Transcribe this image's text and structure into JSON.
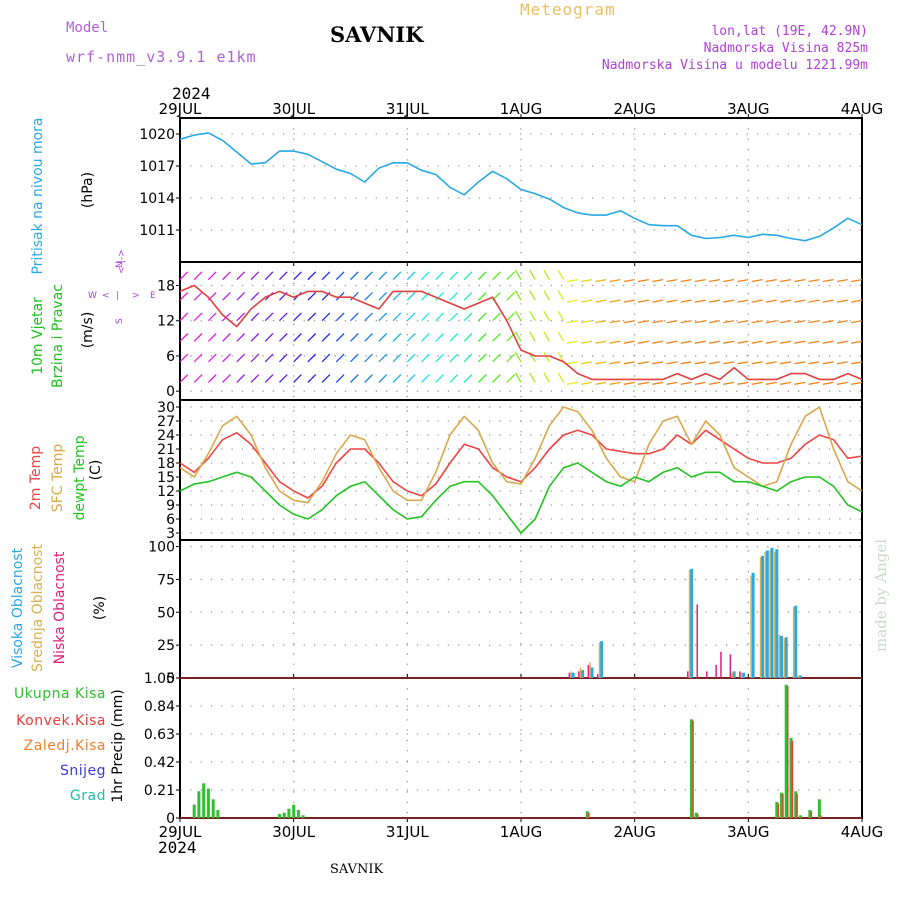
{
  "header": {
    "model_label": "Model",
    "model_name": "wrf-nmm_v3.9.1 e1km",
    "title": "SAVNIK",
    "meteogram_label": "Meteogram",
    "lonlat": "lon,lat (19E, 42.9N)",
    "altitude": "Nadmorska Visina 825m",
    "model_altitude": "Nadmorska Visina u modelu 1221.99m",
    "year": "2024"
  },
  "footer": {
    "station": "SAVNIK",
    "credit": "made by Angel"
  },
  "colors": {
    "pressure": "#29a8e6",
    "temp2m": "#ee4444",
    "sfctemp": "#d8a84a",
    "dewpt": "#22c422",
    "high_cloud": "#29a8e6",
    "mid_cloud": "#d8b050",
    "low_cloud": "#e0207a",
    "total_precip": "#2fbf2f",
    "conv_precip": "#ee3b3b",
    "frozen_precip": "#f08030",
    "snow": "#3a3aee",
    "graupel": "#20c0b0",
    "wind_label": "#20c020",
    "wind_axis_label": "#b040e0"
  },
  "chart_data": [
    {
      "type": "line",
      "panel": "pressure",
      "ylabel": "(hPa)",
      "side_label": "Pritisak na nivou mora",
      "yticks": [
        1011,
        1014,
        1017,
        1020
      ],
      "ylim": [
        1008,
        1021.5
      ],
      "xlim": [
        0,
        144
      ],
      "xtick_labels": [
        "29JUL",
        "30JUL",
        "31JUL",
        "1AUG",
        "2AUG",
        "3AUG",
        "4AUG"
      ],
      "grid": true,
      "series": [
        {
          "x": [
            0,
            3,
            6,
            9,
            12,
            15,
            18,
            21,
            24,
            27,
            30,
            33,
            36,
            39,
            42,
            45,
            48,
            51,
            54,
            57,
            60,
            63,
            66,
            69,
            72,
            75,
            78,
            81,
            84,
            87,
            90,
            93,
            96,
            99,
            102,
            105,
            108,
            111,
            114,
            117,
            120,
            123,
            126,
            129,
            132,
            135,
            138,
            141,
            144
          ],
          "values": [
            1019.5,
            1019.9,
            1020.1,
            1019.4,
            1018.3,
            1017.2,
            1017.3,
            1018.4,
            1018.4,
            1018.1,
            1017.4,
            1016.7,
            1016.3,
            1015.5,
            1016.8,
            1017.3,
            1017.3,
            1016.6,
            1016.2,
            1015.0,
            1014.3,
            1015.5,
            1016.5,
            1015.8,
            1014.8,
            1014.4,
            1013.9,
            1013.1,
            1012.6,
            1012.4,
            1012.4,
            1012.8,
            1012.1,
            1011.5,
            1011.4,
            1011.4,
            1010.5,
            1010.2,
            1010.3,
            1010.5,
            1010.3,
            1010.6,
            1010.5,
            1010.2,
            1010.0,
            1010.4,
            1011.2,
            1012.1,
            1011.5
          ]
        }
      ]
    },
    {
      "type": "line",
      "panel": "wind",
      "ylabel": "(m/s)",
      "side_labels": [
        "10m Vjetar",
        "Brzina i Pravac"
      ],
      "compass": {
        "north": "N",
        "south": "S",
        "east": "E",
        "west": "W"
      },
      "yticks": [
        0,
        6,
        12,
        18
      ],
      "ylim": [
        -1.5,
        22
      ],
      "xlim": [
        0,
        144
      ],
      "grid": true,
      "series": [
        {
          "name": "speed",
          "x": [
            0,
            3,
            6,
            9,
            12,
            15,
            18,
            21,
            24,
            27,
            30,
            33,
            36,
            39,
            42,
            45,
            48,
            51,
            54,
            57,
            60,
            63,
            66,
            69,
            72,
            75,
            78,
            81,
            84,
            87,
            90,
            93,
            96,
            99,
            102,
            105,
            108,
            111,
            114,
            117,
            120,
            123,
            126,
            129,
            132,
            135,
            138,
            141,
            144
          ],
          "values": [
            17,
            18,
            16,
            13,
            11,
            14,
            16,
            17,
            16,
            17,
            17,
            16,
            16,
            15,
            14,
            17,
            17,
            17,
            16,
            15,
            14,
            15,
            16,
            12,
            7,
            6,
            6,
            5,
            3,
            2,
            2,
            2,
            2,
            2,
            2,
            3,
            2,
            3,
            2,
            4,
            2,
            2,
            2,
            3,
            3,
            2,
            2,
            3,
            2
          ]
        }
      ]
    },
    {
      "type": "line",
      "panel": "temperature",
      "ylabel": "(C)",
      "side_labels": [
        "2m Temp",
        "SFC Temp",
        "dewpt Temp"
      ],
      "yticks": [
        3,
        6,
        9,
        12,
        15,
        18,
        21,
        24,
        27,
        30
      ],
      "ylim": [
        1.5,
        31.5
      ],
      "xlim": [
        0,
        144
      ],
      "grid": true,
      "series": [
        {
          "name": "2m Temp",
          "x": [
            0,
            3,
            6,
            9,
            12,
            15,
            18,
            21,
            24,
            27,
            30,
            33,
            36,
            39,
            42,
            45,
            48,
            51,
            54,
            57,
            60,
            63,
            66,
            69,
            72,
            75,
            78,
            81,
            84,
            87,
            90,
            93,
            96,
            99,
            102,
            105,
            108,
            111,
            114,
            117,
            120,
            123,
            126,
            129,
            132,
            135,
            138,
            141,
            144
          ],
          "values": [
            18,
            16,
            19,
            23,
            24.5,
            22,
            18,
            14,
            12,
            10.5,
            13,
            18,
            21,
            21,
            18,
            14,
            12,
            11,
            13.5,
            18,
            22,
            21,
            17,
            15,
            14,
            17,
            21,
            24,
            25,
            24,
            21,
            20.5,
            20,
            20,
            21,
            24,
            22,
            25,
            23,
            21,
            19,
            18,
            18,
            19,
            22,
            24,
            23,
            19,
            19.5
          ]
        },
        {
          "name": "SFC Temp",
          "x": [
            0,
            3,
            6,
            9,
            12,
            15,
            18,
            21,
            24,
            27,
            30,
            33,
            36,
            39,
            42,
            45,
            48,
            51,
            54,
            57,
            60,
            63,
            66,
            69,
            72,
            75,
            78,
            81,
            84,
            87,
            90,
            93,
            96,
            99,
            102,
            105,
            108,
            111,
            114,
            117,
            120,
            123,
            126,
            129,
            132,
            135,
            138,
            141,
            144
          ],
          "values": [
            17,
            15,
            20,
            26,
            28,
            24,
            17,
            12,
            10,
            9.5,
            14,
            20,
            24,
            23,
            17,
            12,
            10,
            10,
            16,
            24,
            28,
            25,
            18,
            14,
            13.5,
            19,
            26,
            30,
            29,
            25,
            19,
            15,
            14,
            22,
            27,
            28,
            22,
            27,
            24,
            17,
            15,
            13,
            14,
            22,
            28,
            30,
            21,
            14,
            12
          ]
        },
        {
          "name": "dewpt Temp",
          "x": [
            0,
            3,
            6,
            9,
            12,
            15,
            18,
            21,
            24,
            27,
            30,
            33,
            36,
            39,
            42,
            45,
            48,
            51,
            54,
            57,
            60,
            63,
            66,
            69,
            72,
            75,
            78,
            81,
            84,
            87,
            90,
            93,
            96,
            99,
            102,
            105,
            108,
            111,
            114,
            117,
            120,
            123,
            126,
            129,
            132,
            135,
            138,
            141,
            144
          ],
          "values": [
            12,
            13.5,
            14,
            15,
            16,
            15,
            12,
            9,
            7,
            6,
            8,
            11,
            13,
            14,
            11,
            8,
            6,
            6.5,
            10,
            13,
            14,
            14,
            11,
            7,
            3,
            6,
            13,
            17,
            18,
            16,
            14,
            13,
            15,
            14,
            16,
            17,
            15,
            16,
            16,
            14,
            14,
            13,
            12,
            14,
            15,
            15,
            13,
            9,
            7.5
          ]
        }
      ]
    },
    {
      "type": "bar",
      "panel": "cloud",
      "ylabel": "(%)",
      "side_labels": [
        "Visoka Oblacnost",
        "Srednja Oblacnost",
        "Niska Oblacnost"
      ],
      "yticks": [
        0,
        25,
        50,
        75,
        100
      ],
      "ylim": [
        0,
        105
      ],
      "xlim": [
        0,
        144
      ],
      "grid": true,
      "series": [
        {
          "name": "Visoka Oblacnost",
          "x": [
            83,
            85,
            87,
            89,
            108,
            117,
            119,
            121,
            123,
            124,
            125,
            126,
            127,
            128,
            130,
            131
          ],
          "values": [
            4,
            6,
            8,
            28,
            83,
            5,
            4,
            80,
            93,
            97,
            99,
            98,
            32,
            31,
            55,
            2
          ]
        },
        {
          "name": "Srednja Oblacnost",
          "x": [
            83,
            85,
            87,
            89,
            108,
            117,
            119,
            121,
            123,
            124,
            125,
            126,
            127,
            128,
            130,
            131
          ],
          "values": [
            5,
            8,
            12,
            27,
            82,
            4,
            4,
            78,
            92,
            96,
            97,
            96,
            33,
            30,
            54,
            2
          ]
        },
        {
          "name": "Niska Oblacnost",
          "x": [
            82,
            84,
            86,
            88,
            107,
            109,
            111,
            113,
            114,
            116,
            118
          ],
          "values": [
            4,
            5,
            10,
            3,
            5,
            56,
            5,
            10,
            20,
            18,
            5
          ]
        }
      ]
    },
    {
      "type": "bar",
      "panel": "precipitation",
      "ylabel": "1hr Precip (mm)",
      "side_labels": [
        "Ukupna Kisa",
        "Konvek.Kisa",
        "Zaledj.Kisa",
        "Snijeg",
        "Grad"
      ],
      "yticks": [
        0,
        0.21,
        0.42,
        0.63,
        0.84,
        1.05
      ],
      "ylim": [
        0,
        1.05
      ],
      "xlim": [
        0,
        144
      ],
      "xtick_labels": [
        "29JUL",
        "30JUL",
        "31JUL",
        "1AUG",
        "2AUG",
        "3AUG",
        "4AUG"
      ],
      "grid": true,
      "series": [
        {
          "name": "Ukupna Kisa",
          "x": [
            3,
            4,
            5,
            6,
            7,
            8,
            21,
            22,
            23,
            24,
            25,
            26,
            86,
            108,
            109,
            126,
            127,
            128,
            129,
            130,
            131,
            133,
            135
          ],
          "values": [
            0.1,
            0.2,
            0.26,
            0.22,
            0.14,
            0.06,
            0.03,
            0.04,
            0.07,
            0.1,
            0.06,
            0.02,
            0.05,
            0.74,
            0.04,
            0.12,
            0.19,
            1.0,
            0.6,
            0.2,
            0.02,
            0.06,
            0.14
          ]
        },
        {
          "name": "Konvek.Kisa",
          "x": [
            3,
            4,
            5,
            6,
            7,
            8,
            21,
            22,
            23,
            24,
            25,
            26,
            86,
            108,
            109,
            126,
            127,
            128,
            129,
            130,
            131,
            133,
            135
          ],
          "values": [
            0,
            0,
            0,
            0,
            0,
            0,
            0,
            0,
            0,
            0,
            0,
            0,
            0.04,
            0.73,
            0.03,
            0.11,
            0.18,
            0.99,
            0.58,
            0.18,
            0.01,
            0.05,
            0.02
          ]
        }
      ]
    }
  ]
}
